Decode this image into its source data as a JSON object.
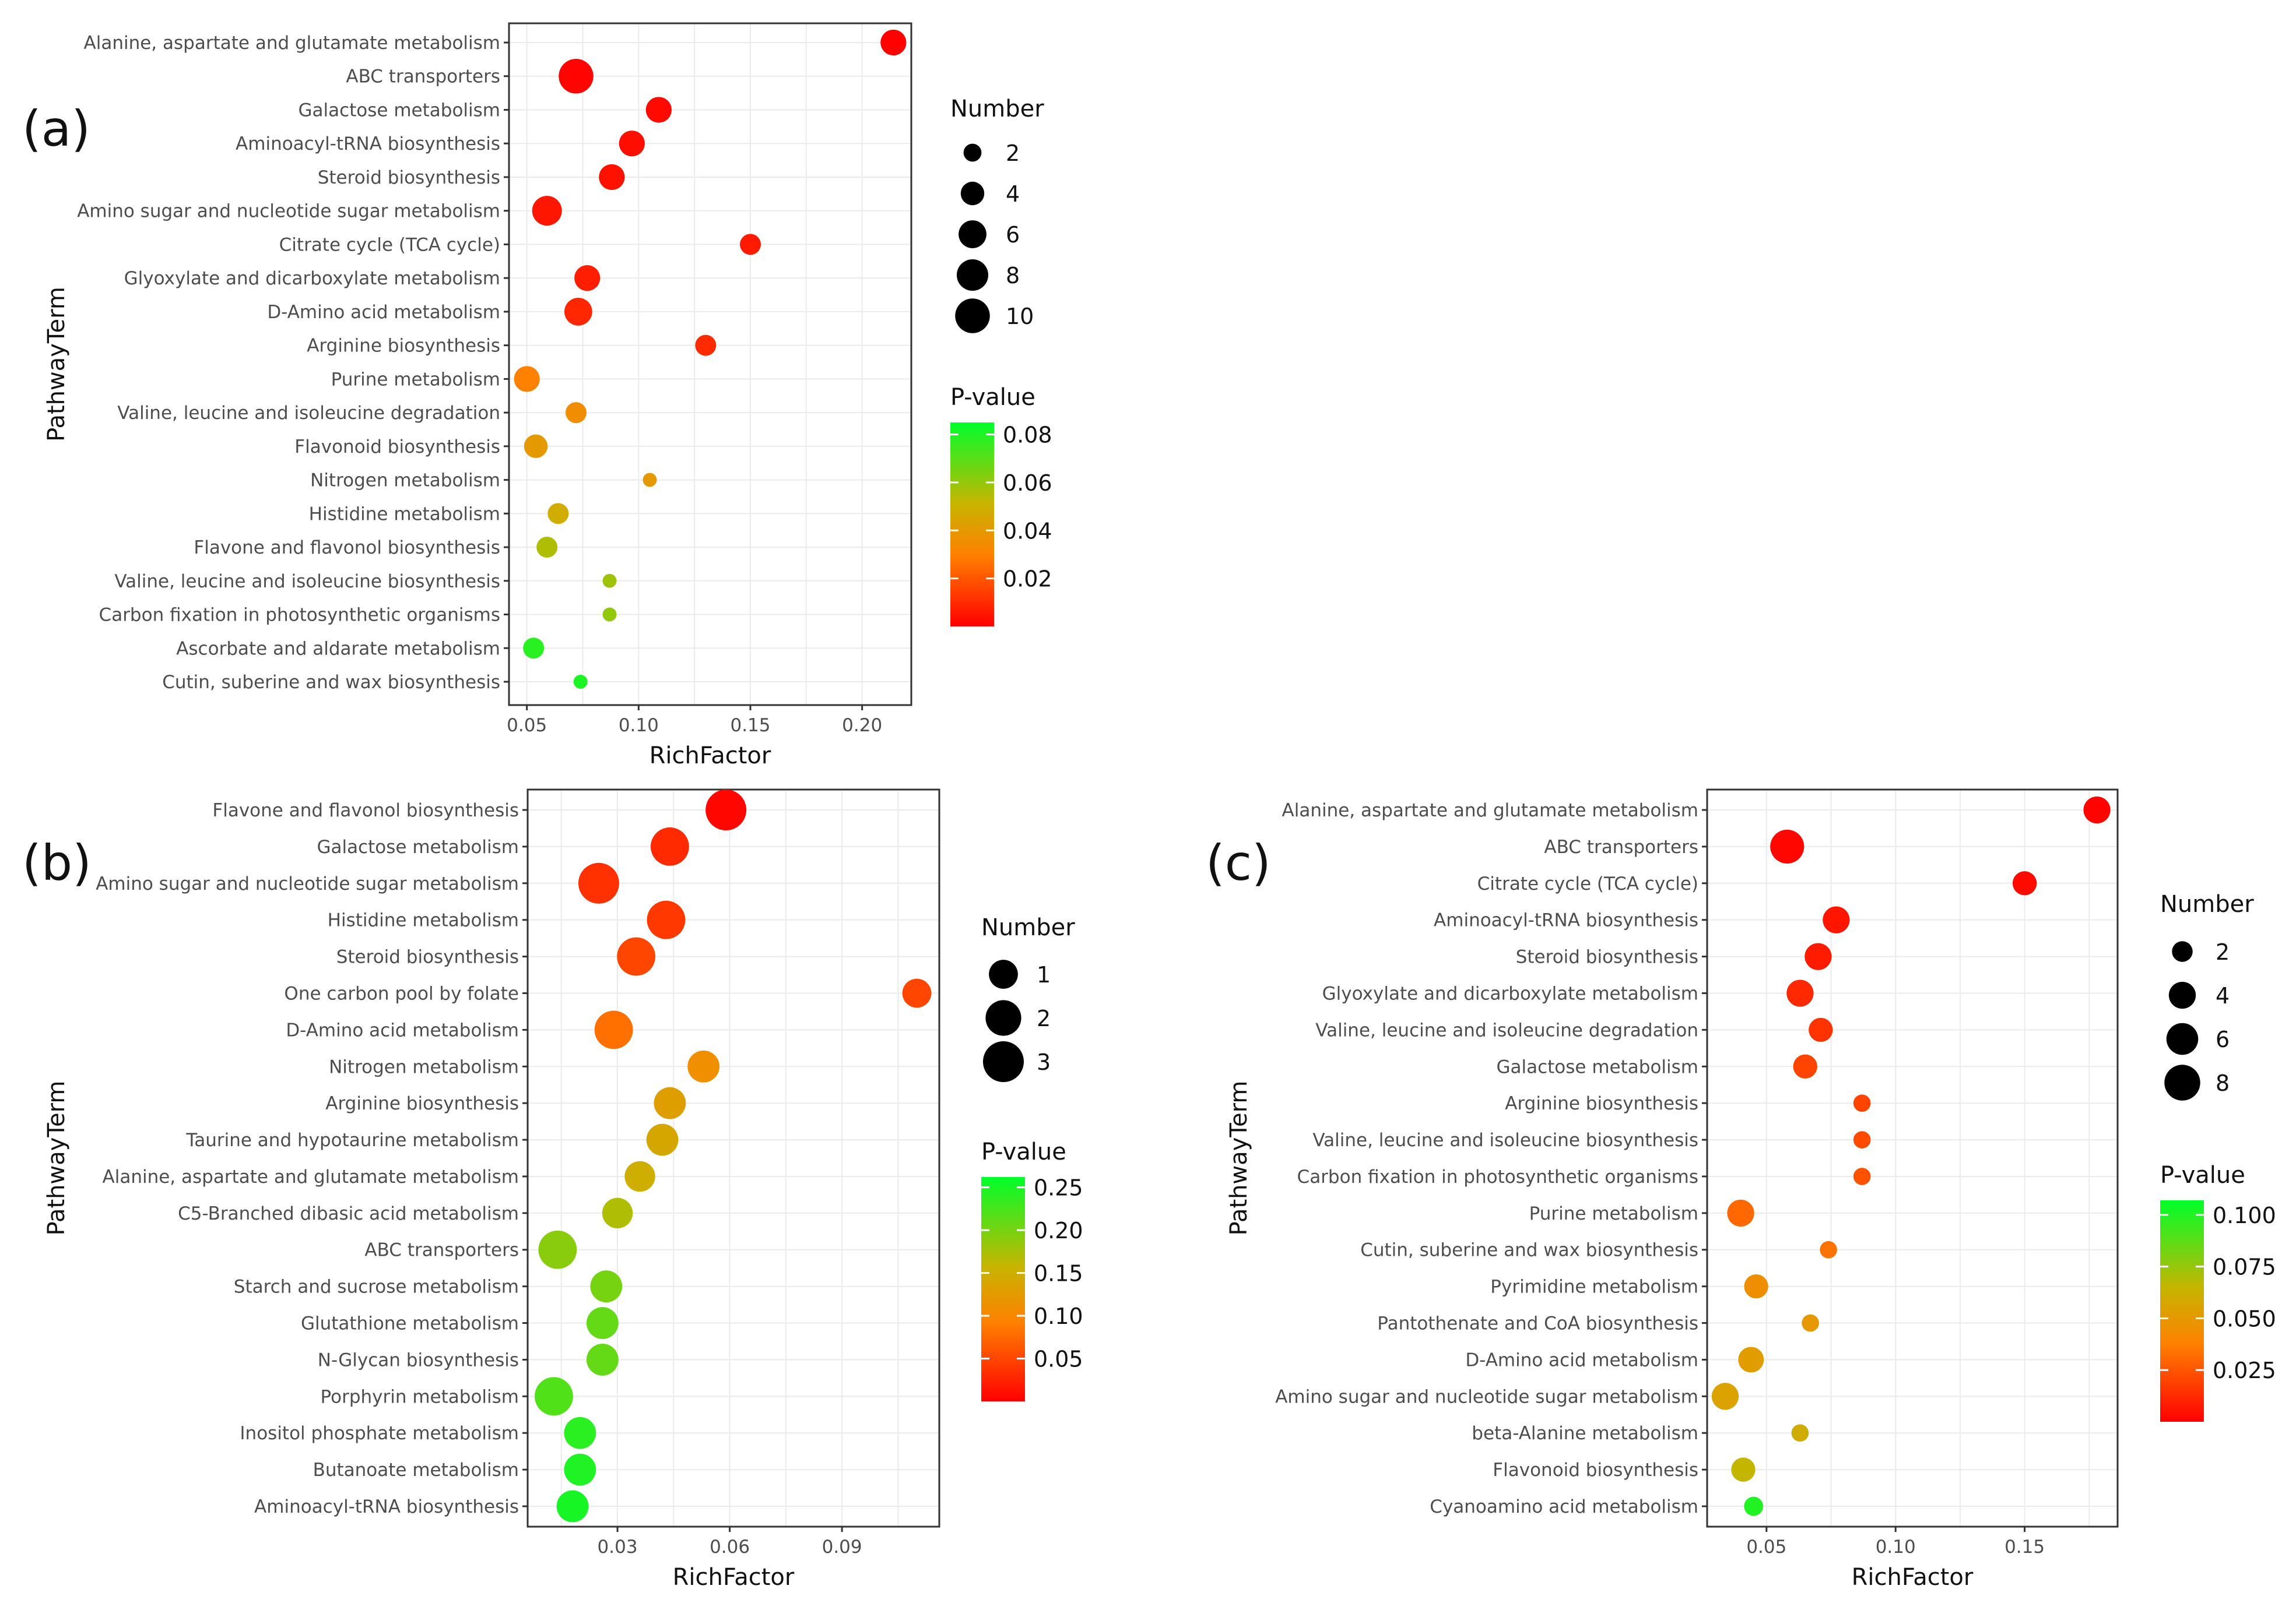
{
  "chart_data": [
    {
      "panel": "(a)",
      "type": "scatter",
      "xlabel": "RichFactor",
      "ylabel": "PathwayTerm",
      "xlim": [
        0.042,
        0.222
      ],
      "xticks": [
        {
          "value": 0.05,
          "label": "0.05"
        },
        {
          "value": 0.1,
          "label": "0.10"
        },
        {
          "value": 0.15,
          "label": "0.15"
        },
        {
          "value": 0.2,
          "label": "0.20"
        }
      ],
      "categories": [
        "Alanine, aspartate and glutamate metabolism",
        "ABC transporters",
        "Galactose metabolism",
        "Aminoacyl-tRNA biosynthesis",
        "Steroid biosynthesis",
        "Amino sugar and nucleotide sugar metabolism",
        "Citrate cycle (TCA cycle)",
        "Glyoxylate and dicarboxylate metabolism",
        "D-Amino acid metabolism",
        "Arginine biosynthesis",
        "Purine metabolism",
        "Valine, leucine and isoleucine degradation",
        "Flavonoid biosynthesis",
        "Nitrogen metabolism",
        "Histidine metabolism",
        "Flavone and flavonol biosynthesis",
        "Valine, leucine and isoleucine biosynthesis",
        "Carbon fixation in photosynthetic organisms",
        "Ascorbate and aldarate metabolism",
        "Cutin, suberine and wax biosynthesis"
      ],
      "richfactor": [
        0.214,
        0.072,
        0.109,
        0.097,
        0.088,
        0.059,
        0.15,
        0.077,
        0.073,
        0.13,
        0.05,
        0.072,
        0.054,
        0.105,
        0.064,
        0.059,
        0.087,
        0.087,
        0.053,
        0.074
      ],
      "number": [
        5,
        10,
        5,
        5,
        5,
        7,
        3,
        5,
        6,
        3,
        5,
        3,
        4,
        1,
        3,
        3,
        1,
        1,
        3,
        1
      ],
      "pvalue": [
        0.0005,
        0.001,
        0.002,
        0.003,
        0.004,
        0.005,
        0.006,
        0.007,
        0.009,
        0.01,
        0.03,
        0.035,
        0.04,
        0.04,
        0.048,
        0.055,
        0.058,
        0.06,
        0.078,
        0.08
      ],
      "size_legend": {
        "title": "Number",
        "labels": [
          "2",
          "4",
          "6",
          "8",
          "10"
        ],
        "values": [
          2,
          4,
          6,
          8,
          10
        ]
      },
      "color_legend": {
        "title": "P-value",
        "labels": [
          "0.08",
          "0.06",
          "0.04",
          "0.02"
        ],
        "values": [
          0.08,
          0.06,
          0.04,
          0.02
        ],
        "range": [
          0,
          0.085
        ]
      }
    },
    {
      "panel": "(b)",
      "type": "scatter",
      "xlabel": "RichFactor",
      "ylabel": "PathwayTerm",
      "xlim": [
        0.006,
        0.116
      ],
      "xticks": [
        {
          "value": 0.03,
          "label": "0.03"
        },
        {
          "value": 0.06,
          "label": "0.06"
        },
        {
          "value": 0.09,
          "label": "0.09"
        }
      ],
      "categories": [
        "Flavone and flavonol biosynthesis",
        "Galactose metabolism",
        "Amino sugar and nucleotide sugar metabolism",
        "Histidine metabolism",
        "Steroid biosynthesis",
        "One carbon pool by folate",
        "D-Amino acid metabolism",
        "Nitrogen metabolism",
        "Arginine biosynthesis",
        "Taurine and hypotaurine metabolism",
        "Alanine, aspartate and glutamate metabolism",
        "C5-Branched dibasic acid metabolism",
        "ABC transporters",
        "Starch and sucrose metabolism",
        "Glutathione metabolism",
        "N-Glycan biosynthesis",
        "Porphyrin metabolism",
        "Inositol phosphate metabolism",
        "Butanoate metabolism",
        "Aminoacyl-tRNA biosynthesis"
      ],
      "richfactor": [
        0.059,
        0.044,
        0.025,
        0.043,
        0.035,
        0.11,
        0.029,
        0.053,
        0.044,
        0.042,
        0.036,
        0.03,
        0.014,
        0.027,
        0.026,
        0.026,
        0.013,
        0.02,
        0.02,
        0.018
      ],
      "number": [
        3,
        2.5,
        3,
        2.5,
        2.5,
        1,
        2.5,
        1.4,
        1.4,
        1.4,
        1.2,
        1.2,
        2.5,
        1.4,
        1.4,
        1.4,
        2.5,
        1.4,
        1.4,
        1.4
      ],
      "pvalue": [
        0.005,
        0.03,
        0.035,
        0.04,
        0.05,
        0.05,
        0.08,
        0.11,
        0.13,
        0.14,
        0.15,
        0.17,
        0.19,
        0.2,
        0.21,
        0.21,
        0.22,
        0.24,
        0.245,
        0.25
      ],
      "size_legend": {
        "title": "Number",
        "labels": [
          "1",
          "2",
          "3"
        ],
        "values": [
          1,
          2,
          3
        ]
      },
      "color_legend": {
        "title": "P-value",
        "labels": [
          "0.25",
          "0.20",
          "0.15",
          "0.10",
          "0.05"
        ],
        "values": [
          0.25,
          0.2,
          0.15,
          0.1,
          0.05
        ],
        "range": [
          0,
          0.262
        ]
      }
    },
    {
      "panel": "(c)",
      "type": "scatter",
      "xlabel": "RichFactor",
      "ylabel": "PathwayTerm",
      "xlim": [
        0.027,
        0.186
      ],
      "xticks": [
        {
          "value": 0.05,
          "label": "0.05"
        },
        {
          "value": 0.1,
          "label": "0.10"
        },
        {
          "value": 0.15,
          "label": "0.15"
        }
      ],
      "categories": [
        "Alanine, aspartate and glutamate metabolism",
        "ABC transporters",
        "Citrate cycle (TCA cycle)",
        "Aminoacyl-tRNA biosynthesis",
        "Steroid biosynthesis",
        "Glyoxylate and dicarboxylate metabolism",
        "Valine, leucine and isoleucine degradation",
        "Galactose metabolism",
        "Arginine biosynthesis",
        "Valine, leucine and isoleucine biosynthesis",
        "Carbon fixation in photosynthetic organisms",
        "Purine metabolism",
        "Cutin, suberine and wax biosynthesis",
        "Pyrimidine metabolism",
        "Pantothenate and CoA biosynthesis",
        "D-Amino acid metabolism",
        "Amino sugar and nucleotide sugar metabolism",
        "beta-Alanine metabolism",
        "Flavonoid biosynthesis",
        "Cyanoamino acid metabolism"
      ],
      "richfactor": [
        0.178,
        0.058,
        0.15,
        0.077,
        0.07,
        0.063,
        0.071,
        0.065,
        0.087,
        0.087,
        0.087,
        0.04,
        0.074,
        0.046,
        0.067,
        0.044,
        0.034,
        0.063,
        0.041,
        0.045
      ],
      "number": [
        4,
        7,
        3,
        4,
        4,
        4,
        3,
        3,
        1.2,
        1.2,
        1.2,
        4,
        1.2,
        3,
        1.2,
        3.5,
        4,
        1.2,
        3,
        1.6
      ],
      "pvalue": [
        0.001,
        0.002,
        0.003,
        0.006,
        0.008,
        0.012,
        0.015,
        0.02,
        0.02,
        0.022,
        0.024,
        0.03,
        0.034,
        0.045,
        0.05,
        0.052,
        0.055,
        0.06,
        0.065,
        0.1
      ],
      "size_legend": {
        "title": "Number",
        "labels": [
          "2",
          "4",
          "6",
          "8"
        ],
        "values": [
          2,
          4,
          6,
          8
        ]
      },
      "color_legend": {
        "title": "P-value",
        "labels": [
          "0.100",
          "0.075",
          "0.050",
          "0.025"
        ],
        "values": [
          0.1,
          0.075,
          0.05,
          0.025
        ],
        "range": [
          0,
          0.107
        ]
      }
    }
  ],
  "colors": {
    "low": "#ff0000",
    "mid1": "#ff8000",
    "mid2": "#c8b400",
    "high": "#00ff2a",
    "dot_legend": "#000000"
  }
}
